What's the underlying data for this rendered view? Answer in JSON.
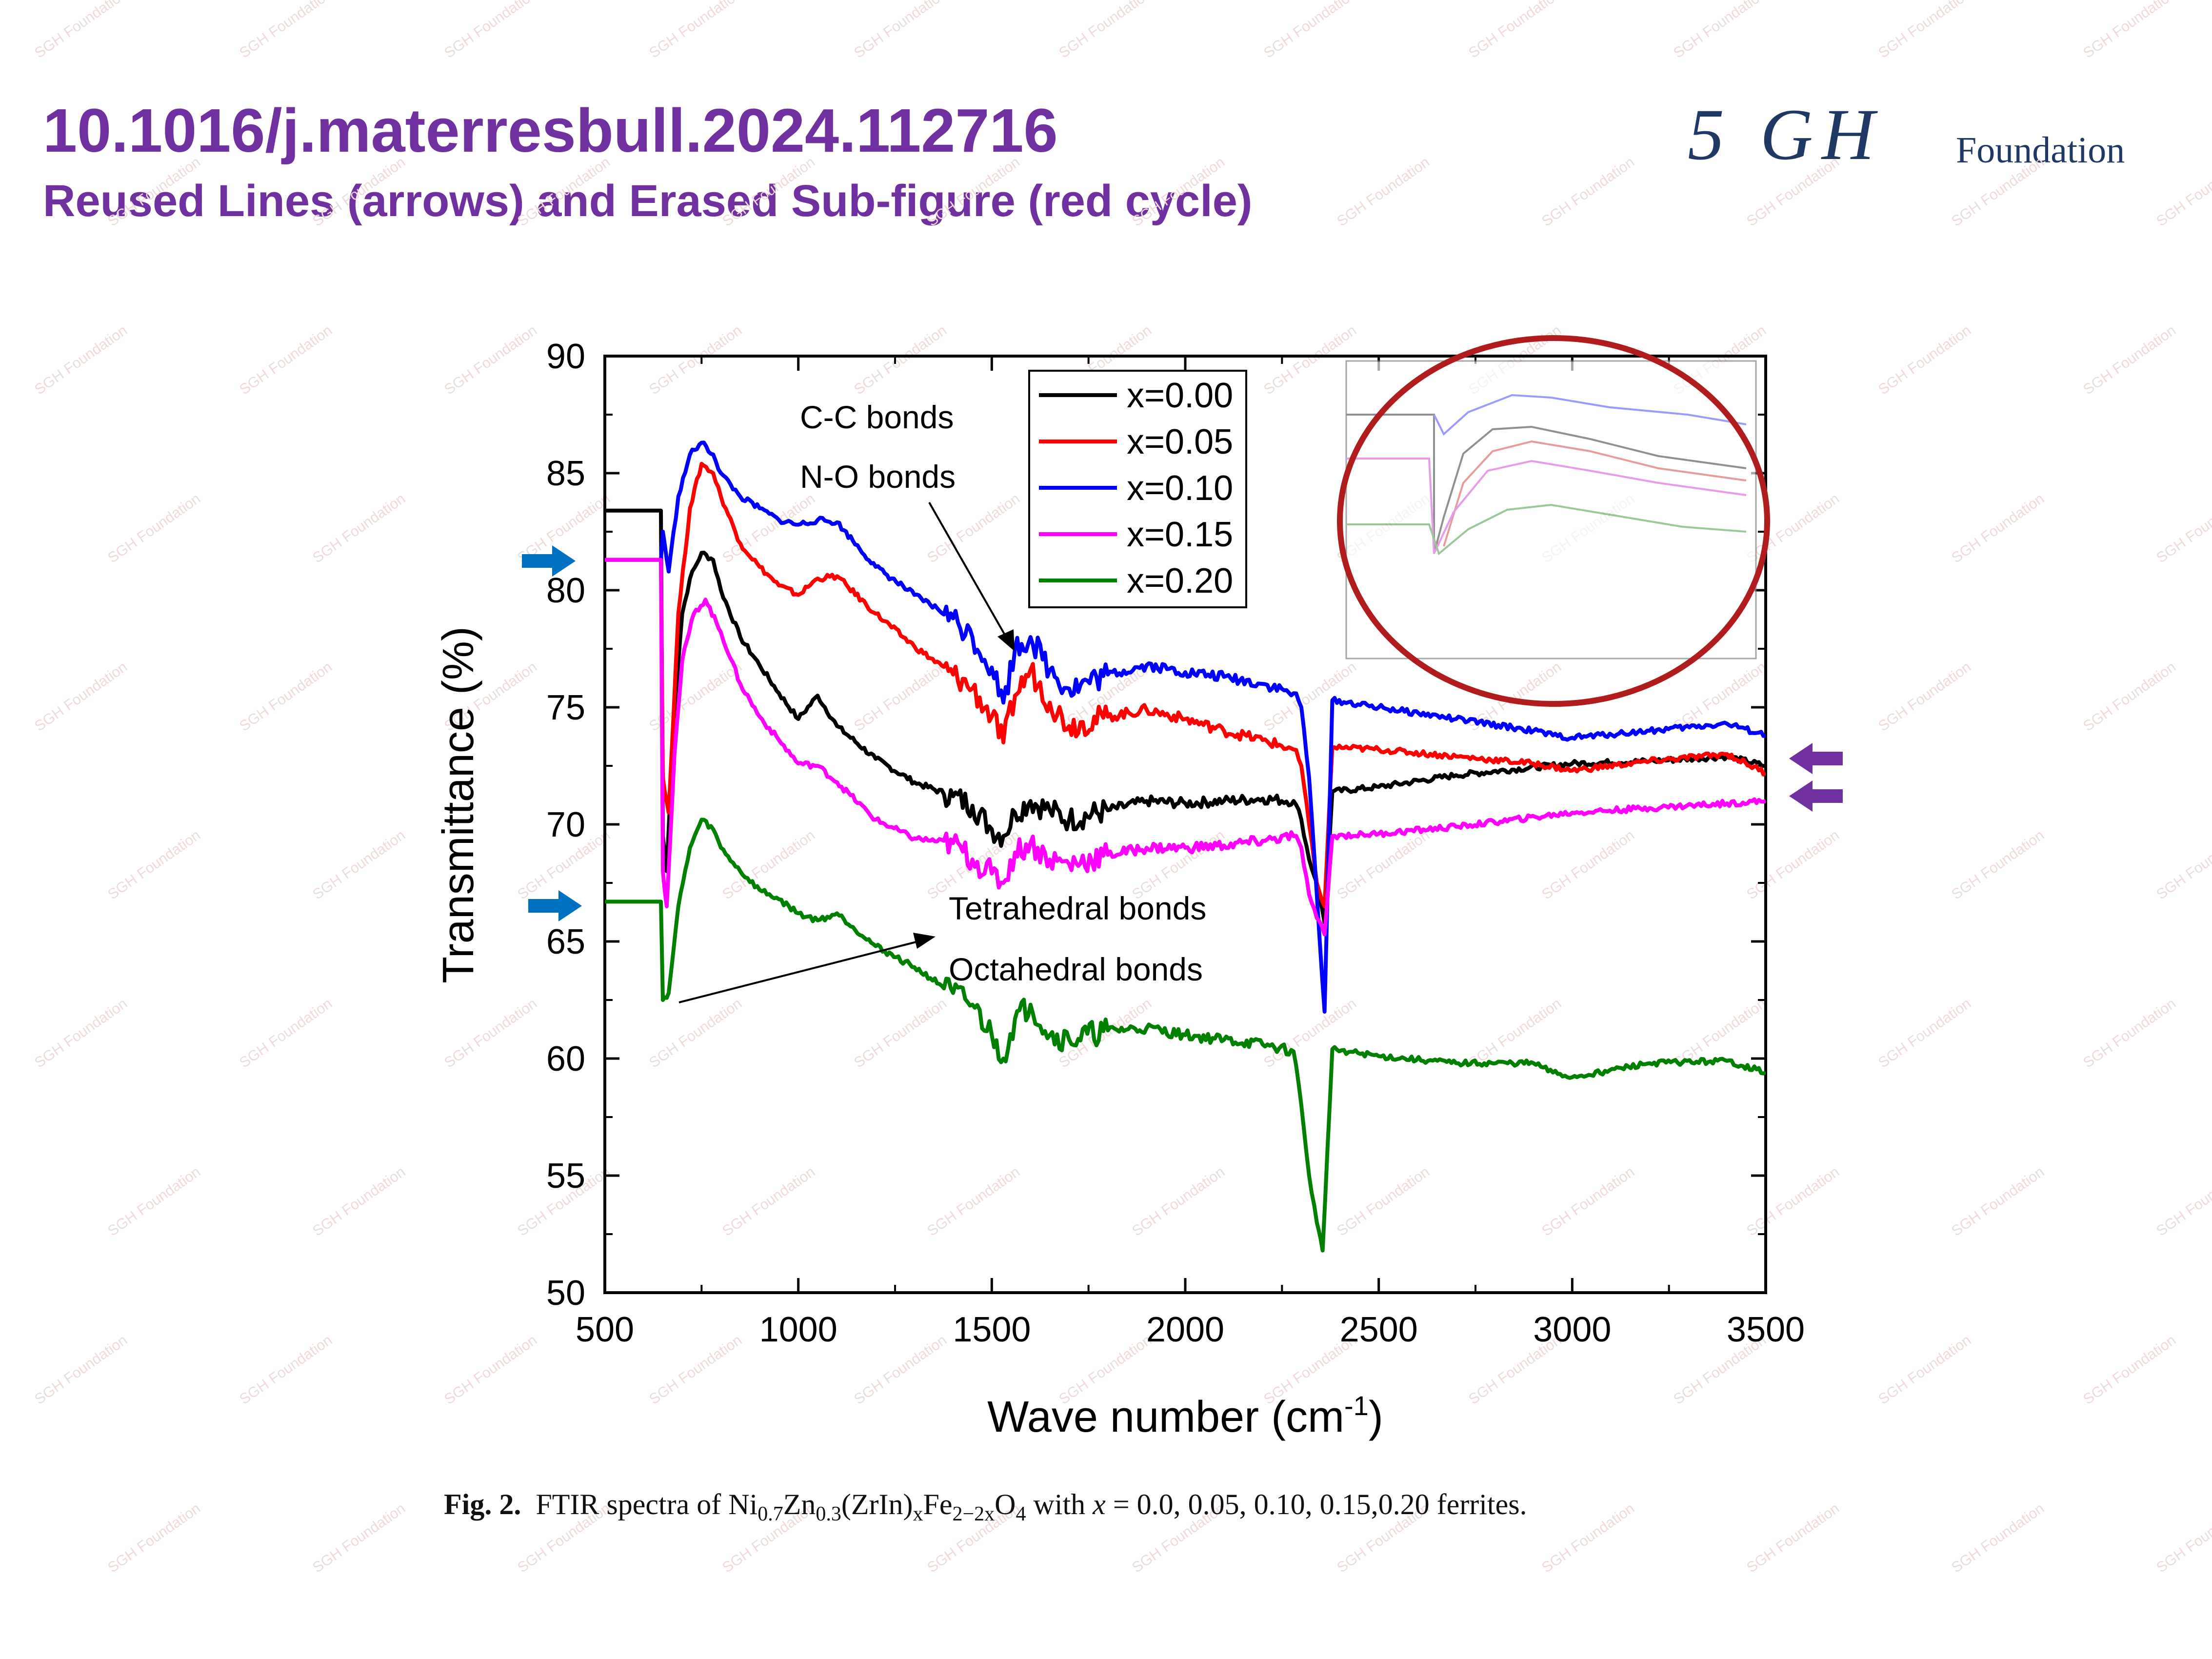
{
  "slide": {
    "title": "10.1016/j.materresbull.2024.112716",
    "subtitle": "Reused Lines (arrows) and Erased Sub-figure (red cycle)",
    "logo_script": "5 GH",
    "logo_word": "Foundation",
    "watermark": "SGH Foundation",
    "colors": {
      "title": "#7030a0",
      "logo": "#1f3864",
      "blue_arrow": "#0070c0",
      "purple_arrow": "#7030a0",
      "highlight_circle": "#b01c1c"
    },
    "markers": [
      {
        "type": "blue-arrow",
        "points_to": "x=0.15 flat start segment"
      },
      {
        "type": "blue-arrow",
        "points_to": "x=0.20 flat start segment"
      },
      {
        "type": "purple-arrow",
        "points_to": "x=0.00 right end"
      },
      {
        "type": "purple-arrow",
        "points_to": "x=0.15 right end"
      },
      {
        "type": "red-circle",
        "points_to": "partially erased inset sub-figure"
      }
    ]
  },
  "caption": {
    "label": "Fig. 2.",
    "text": "FTIR spectra of Ni0.7Zn0.3(ZrIn)xFe2−2xO4 with x = 0.0, 0.05, 0.10, 0.15,0.20 ferrites.",
    "parts": {
      "t1": "FTIR spectra of Ni",
      "s1": "0.7",
      "t2": "Zn",
      "s2": "0.3",
      "t3": "(ZrIn)",
      "s3": "x",
      "t4": "Fe",
      "s4": "2−2x",
      "t5": "O",
      "s5": "4",
      "t6": " with ",
      "xvar": "x",
      "t7": " = 0.0, 0.05, 0.10, 0.15,0.20 ferrites."
    }
  },
  "chart_data": {
    "type": "line",
    "title": "",
    "xlabel": "Wave number (cm-1)",
    "xlabel_main": "Wave number (cm",
    "xlabel_sup": "-1",
    "xlabel_close": ")",
    "ylabel": "Transmittance (%)",
    "xlim": [
      500,
      3500
    ],
    "ylim": [
      50,
      90
    ],
    "xticks": [
      500,
      1000,
      1500,
      2000,
      2500,
      3000,
      3500
    ],
    "yticks": [
      50,
      55,
      60,
      65,
      70,
      75,
      80,
      85,
      90
    ],
    "grid": false,
    "legend_position": "top-center",
    "annotations": [
      "C-C bonds",
      "N-O bonds",
      "Tetrahedral bonds",
      "Octahedral bonds"
    ],
    "series": [
      {
        "name": "x=0.00",
        "color": "#000000",
        "points": [
          [
            500,
            83.4
          ],
          [
            645,
            83.4
          ],
          [
            650,
            69.5
          ],
          [
            660,
            68
          ],
          [
            680,
            75
          ],
          [
            700,
            79
          ],
          [
            720,
            80.5
          ],
          [
            750,
            81.6
          ],
          [
            780,
            81.3
          ],
          [
            800,
            80
          ],
          [
            850,
            78
          ],
          [
            900,
            76.8
          ],
          [
            950,
            75.6
          ],
          [
            1000,
            74.5
          ],
          [
            1050,
            75.5
          ],
          [
            1100,
            74.2
          ],
          [
            1200,
            72.8
          ],
          [
            1300,
            71.8
          ],
          [
            1400,
            71.2
          ],
          [
            1450,
            70.8
          ],
          [
            1500,
            69.8
          ],
          [
            1530,
            69.5
          ],
          [
            1560,
            70.5
          ],
          [
            1600,
            71
          ],
          [
            1650,
            70.6
          ],
          [
            1700,
            70.2
          ],
          [
            1800,
            70.6
          ],
          [
            1900,
            71
          ],
          [
            2000,
            70.9
          ],
          [
            2100,
            71
          ],
          [
            2200,
            71.1
          ],
          [
            2280,
            71
          ],
          [
            2300,
            70.2
          ],
          [
            2320,
            68.5
          ],
          [
            2340,
            67.5
          ],
          [
            2360,
            65.8
          ],
          [
            2380,
            71.4
          ],
          [
            2500,
            71.6
          ],
          [
            2700,
            72.1
          ],
          [
            3000,
            72.6
          ],
          [
            3200,
            72.7
          ],
          [
            3400,
            72.9
          ],
          [
            3500,
            72.5
          ]
        ]
      },
      {
        "name": "x=0.05",
        "color": "#ff0000",
        "points": [
          [
            500,
            81.3
          ],
          [
            645,
            81.3
          ],
          [
            650,
            72
          ],
          [
            665,
            70.5
          ],
          [
            690,
            79
          ],
          [
            720,
            83.5
          ],
          [
            750,
            85.4
          ],
          [
            780,
            85
          ],
          [
            800,
            84
          ],
          [
            850,
            82
          ],
          [
            900,
            81
          ],
          [
            950,
            80.2
          ],
          [
            1000,
            79.8
          ],
          [
            1050,
            80.5
          ],
          [
            1100,
            80.6
          ],
          [
            1200,
            79
          ],
          [
            1300,
            77.6
          ],
          [
            1400,
            76.4
          ],
          [
            1450,
            75.8
          ],
          [
            1500,
            74.6
          ],
          [
            1530,
            73.5
          ],
          [
            1560,
            75.5
          ],
          [
            1600,
            76.6
          ],
          [
            1650,
            75.2
          ],
          [
            1700,
            74.2
          ],
          [
            1800,
            74.6
          ],
          [
            1900,
            74.9
          ],
          [
            2000,
            74.5
          ],
          [
            2100,
            74
          ],
          [
            2200,
            73.6
          ],
          [
            2280,
            73.2
          ],
          [
            2300,
            72.5
          ],
          [
            2320,
            70
          ],
          [
            2340,
            67.5
          ],
          [
            2360,
            66.5
          ],
          [
            2380,
            73.3
          ],
          [
            2500,
            73.2
          ],
          [
            2700,
            72.9
          ],
          [
            2900,
            72.6
          ],
          [
            3000,
            72.3
          ],
          [
            3200,
            72.7
          ],
          [
            3400,
            73
          ],
          [
            3500,
            72.2
          ]
        ]
      },
      {
        "name": "x=0.10",
        "color": "#0000ff",
        "points": [
          [
            500,
            81.3
          ],
          [
            645,
            81.3
          ],
          [
            650,
            82.5
          ],
          [
            665,
            80.8
          ],
          [
            690,
            84
          ],
          [
            720,
            85.8
          ],
          [
            750,
            86.3
          ],
          [
            780,
            85.8
          ],
          [
            800,
            85
          ],
          [
            850,
            84
          ],
          [
            900,
            83.5
          ],
          [
            950,
            83
          ],
          [
            1000,
            82.8
          ],
          [
            1050,
            83
          ],
          [
            1100,
            82.9
          ],
          [
            1200,
            81
          ],
          [
            1300,
            79.8
          ],
          [
            1400,
            78.8
          ],
          [
            1450,
            78
          ],
          [
            1500,
            76.7
          ],
          [
            1530,
            75.2
          ],
          [
            1560,
            77.5
          ],
          [
            1600,
            78
          ],
          [
            1650,
            76.6
          ],
          [
            1700,
            75.8
          ],
          [
            1800,
            76.4
          ],
          [
            1900,
            76.8
          ],
          [
            2000,
            76.5
          ],
          [
            2100,
            76.3
          ],
          [
            2200,
            76
          ],
          [
            2280,
            75.6
          ],
          [
            2300,
            75
          ],
          [
            2320,
            72
          ],
          [
            2340,
            67
          ],
          [
            2360,
            62
          ],
          [
            2380,
            75.3
          ],
          [
            2500,
            75
          ],
          [
            2700,
            74.5
          ],
          [
            2900,
            74
          ],
          [
            2950,
            73.8
          ],
          [
            3000,
            73.7
          ],
          [
            3200,
            74
          ],
          [
            3400,
            74.3
          ],
          [
            3500,
            73.8
          ]
        ]
      },
      {
        "name": "x=0.15",
        "color": "#ff00ff",
        "points": [
          [
            500,
            81.3
          ],
          [
            645,
            81.3
          ],
          [
            650,
            68
          ],
          [
            660,
            66.5
          ],
          [
            680,
            73
          ],
          [
            700,
            77
          ],
          [
            730,
            79
          ],
          [
            760,
            79.6
          ],
          [
            800,
            78.2
          ],
          [
            850,
            76
          ],
          [
            900,
            74.6
          ],
          [
            950,
            73.6
          ],
          [
            1000,
            72.6
          ],
          [
            1050,
            72.5
          ],
          [
            1100,
            71.8
          ],
          [
            1200,
            70.2
          ],
          [
            1300,
            69.4
          ],
          [
            1400,
            69.2
          ],
          [
            1450,
            68.5
          ],
          [
            1500,
            67.9
          ],
          [
            1530,
            67.5
          ],
          [
            1560,
            68.8
          ],
          [
            1600,
            69.2
          ],
          [
            1650,
            68.5
          ],
          [
            1700,
            68.3
          ],
          [
            1800,
            68.7
          ],
          [
            1900,
            69
          ],
          [
            2000,
            69
          ],
          [
            2100,
            69.1
          ],
          [
            2200,
            69.3
          ],
          [
            2280,
            69.5
          ],
          [
            2300,
            69
          ],
          [
            2320,
            67
          ],
          [
            2340,
            66
          ],
          [
            2360,
            65.3
          ],
          [
            2380,
            69.5
          ],
          [
            2500,
            69.6
          ],
          [
            2700,
            69.9
          ],
          [
            3000,
            70.5
          ],
          [
            3200,
            70.7
          ],
          [
            3400,
            70.9
          ],
          [
            3500,
            71
          ]
        ]
      },
      {
        "name": "x=0.20",
        "color": "#008000",
        "points": [
          [
            500,
            66.7
          ],
          [
            645,
            66.7
          ],
          [
            650,
            62.5
          ],
          [
            665,
            62.8
          ],
          [
            690,
            66.5
          ],
          [
            720,
            69
          ],
          [
            750,
            70.2
          ],
          [
            780,
            69.8
          ],
          [
            800,
            69
          ],
          [
            850,
            68
          ],
          [
            900,
            67.2
          ],
          [
            950,
            66.8
          ],
          [
            1000,
            66.2
          ],
          [
            1050,
            65.9
          ],
          [
            1100,
            66.2
          ],
          [
            1200,
            64.8
          ],
          [
            1300,
            63.9
          ],
          [
            1400,
            62.8
          ],
          [
            1450,
            62.3
          ],
          [
            1500,
            61
          ],
          [
            1530,
            60
          ],
          [
            1560,
            61.7
          ],
          [
            1600,
            62.3
          ],
          [
            1650,
            61
          ],
          [
            1700,
            60.8
          ],
          [
            1800,
            61.2
          ],
          [
            1900,
            61.3
          ],
          [
            2000,
            61
          ],
          [
            2100,
            60.8
          ],
          [
            2200,
            60.6
          ],
          [
            2280,
            60.3
          ],
          [
            2300,
            58
          ],
          [
            2320,
            55
          ],
          [
            2340,
            53
          ],
          [
            2355,
            51.8
          ],
          [
            2380,
            60.4
          ],
          [
            2500,
            60.1
          ],
          [
            2700,
            59.8
          ],
          [
            2900,
            59.8
          ],
          [
            2950,
            59.4
          ],
          [
            3000,
            59.2
          ],
          [
            3200,
            59.8
          ],
          [
            3400,
            59.9
          ],
          [
            3500,
            59.4
          ]
        ]
      }
    ]
  }
}
